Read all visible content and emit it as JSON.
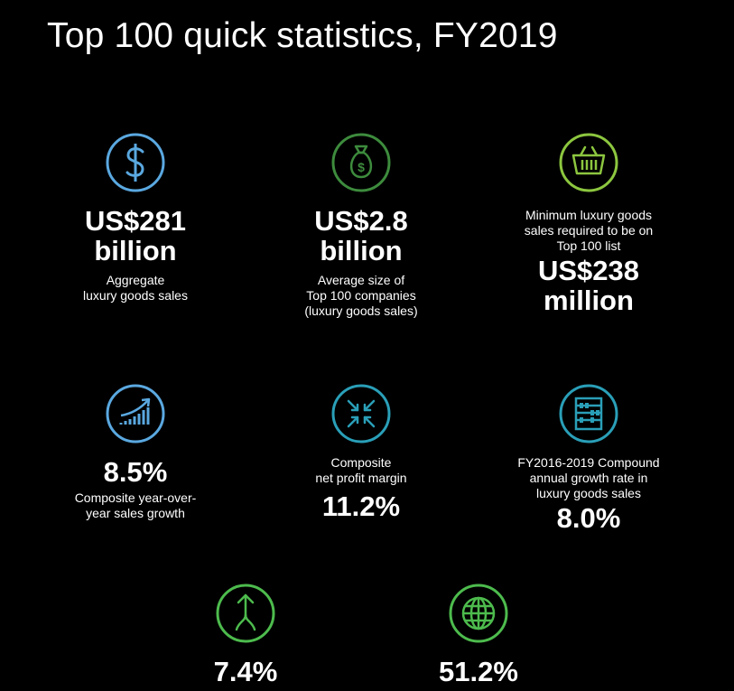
{
  "title": "Top 100 quick statistics, FY2019",
  "colors": {
    "blue": "#5aa8e0",
    "dark_green": "#3d8b3d",
    "lime": "#8cc63f",
    "teal": "#2a9fb8",
    "green": "#4dbb4d"
  },
  "stats": [
    {
      "icon": "dollar-icon",
      "value_line1": "US$281",
      "value_line2": "billion",
      "label_line1": "Aggregate",
      "label_line2": "luxury goods sales"
    },
    {
      "icon": "money-bag-icon",
      "value_line1": "US$2.8",
      "value_line2": "billion",
      "label_line1": "Average size of",
      "label_line2": "Top 100 companies",
      "label_line3": "(luxury goods sales)"
    },
    {
      "icon": "shopping-basket-icon",
      "label_line1": "Minimum luxury goods",
      "label_line2": "sales required to be on",
      "label_line3": "Top 100 list",
      "value_line1": "US$238",
      "value_line2": "million"
    },
    {
      "icon": "growth-chart-icon",
      "value": "8.5%",
      "label_line1": "Composite year-over-",
      "label_line2": "year sales growth"
    },
    {
      "icon": "compress-arrows-icon",
      "label_line1": "Composite",
      "label_line2": "net profit margin",
      "value": "11.2%"
    },
    {
      "icon": "abacus-icon",
      "label_line1": "FY2016-2019 Compound",
      "label_line2": "annual growth rate in",
      "label_line3": "luxury goods sales",
      "value": "8.0%"
    },
    {
      "icon": "merge-arrow-icon",
      "value": "7.4%"
    },
    {
      "icon": "globe-icon",
      "value": "51.2%"
    }
  ]
}
